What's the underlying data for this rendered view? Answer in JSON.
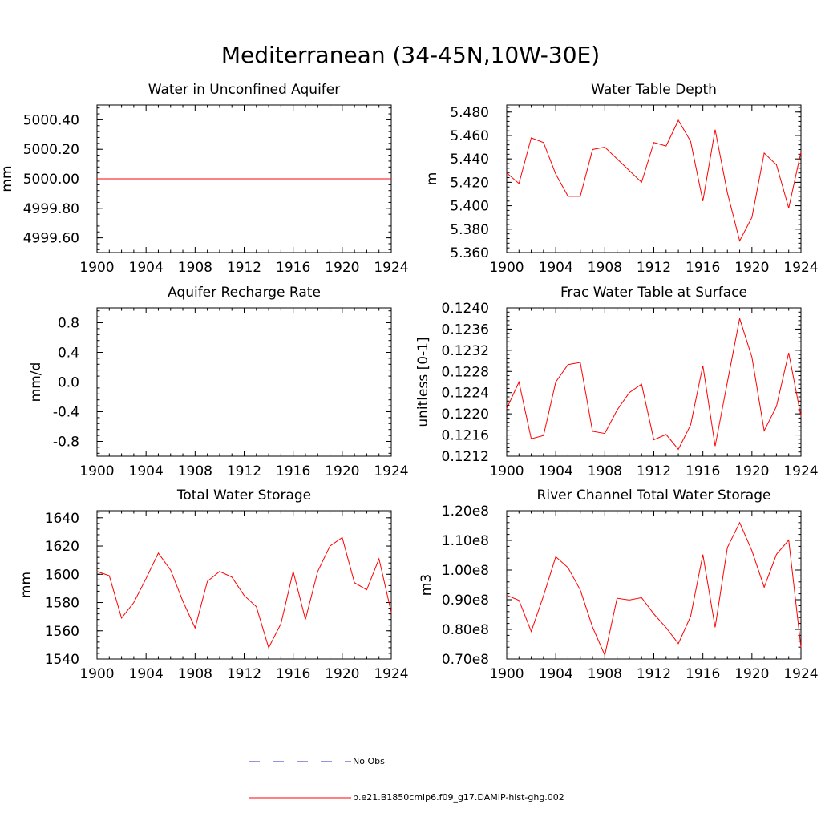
{
  "figure": {
    "title": "Mediterranean (34-45N,10W-30E)"
  },
  "legend": {
    "items": [
      {
        "label": "No Obs",
        "color": "#2b2bd0",
        "style": "dashed"
      },
      {
        "label": "b.e21.B1850cmip6.f09_g17.DAMIP-hist-ghg.002",
        "color": "#ff0000",
        "style": "solid"
      }
    ]
  },
  "chart_data": [
    {
      "type": "line",
      "title": "Water in Unconfined Aquifer",
      "ylabel": "mm",
      "xlim": [
        1900,
        1924
      ],
      "ylim": [
        4999.5,
        5000.5
      ],
      "yticks": [
        4999.6,
        4999.8,
        5000.0,
        5000.2,
        5000.4
      ],
      "ytick_labels": [
        "4999.60",
        "4999.80",
        "5000.00",
        "5000.20",
        "5000.40"
      ],
      "xticks": [
        1900,
        1904,
        1908,
        1912,
        1916,
        1920,
        1924
      ],
      "xtick_labels": [
        "1900",
        "1904",
        "1908",
        "1912",
        "1916",
        "1920",
        "1924"
      ],
      "grid": false,
      "series": [
        {
          "x": [
            1900,
            1901,
            1902,
            1903,
            1904,
            1905,
            1906,
            1907,
            1908,
            1909,
            1910,
            1911,
            1912,
            1913,
            1914,
            1915,
            1916,
            1917,
            1918,
            1919,
            1920,
            1921,
            1922,
            1923,
            1924
          ],
          "values": [
            5000.0,
            5000.0,
            5000.0,
            5000.0,
            5000.0,
            5000.0,
            5000.0,
            5000.0,
            5000.0,
            5000.0,
            5000.0,
            5000.0,
            5000.0,
            5000.0,
            5000.0,
            5000.0,
            5000.0,
            5000.0,
            5000.0,
            5000.0,
            5000.0,
            5000.0,
            5000.0,
            5000.0,
            5000.0
          ],
          "color": "#ff0000"
        }
      ]
    },
    {
      "type": "line",
      "title": "Water Table Depth",
      "ylabel": "m",
      "xlim": [
        1900,
        1924
      ],
      "ylim": [
        5.36,
        5.486
      ],
      "yticks": [
        5.36,
        5.38,
        5.4,
        5.42,
        5.44,
        5.46,
        5.48
      ],
      "ytick_labels": [
        "5.360",
        "5.380",
        "5.400",
        "5.420",
        "5.440",
        "5.460",
        "5.480"
      ],
      "xticks": [
        1900,
        1904,
        1908,
        1912,
        1916,
        1920,
        1924
      ],
      "xtick_labels": [
        "1900",
        "1904",
        "1908",
        "1912",
        "1916",
        "1920",
        "1924"
      ],
      "grid": false,
      "series": [
        {
          "x": [
            1900,
            1901,
            1902,
            1903,
            1904,
            1905,
            1906,
            1907,
            1908,
            1909,
            1910,
            1911,
            1912,
            1913,
            1914,
            1915,
            1916,
            1917,
            1918,
            1919,
            1920,
            1921,
            1922,
            1923,
            1924
          ],
          "values": [
            5.428,
            5.419,
            5.458,
            5.454,
            5.427,
            5.408,
            5.408,
            5.448,
            5.45,
            5.44,
            5.43,
            5.42,
            5.454,
            5.451,
            5.473,
            5.455,
            5.404,
            5.465,
            5.411,
            5.37,
            5.39,
            5.445,
            5.435,
            5.398,
            5.446
          ],
          "color": "#ff0000"
        }
      ]
    },
    {
      "type": "line",
      "title": "Aquifer Recharge Rate",
      "ylabel": "mm/d",
      "xlim": [
        1900,
        1924
      ],
      "ylim": [
        -1.0,
        1.0
      ],
      "yticks": [
        -0.8,
        -0.4,
        0.0,
        0.4,
        0.8
      ],
      "ytick_labels": [
        "-0.8",
        "-0.4",
        "0.0",
        "0.4",
        "0.8"
      ],
      "xticks": [
        1900,
        1904,
        1908,
        1912,
        1916,
        1920,
        1924
      ],
      "xtick_labels": [
        "1900",
        "1904",
        "1908",
        "1912",
        "1916",
        "1920",
        "1924"
      ],
      "grid": false,
      "series": [
        {
          "x": [
            1900,
            1901,
            1902,
            1903,
            1904,
            1905,
            1906,
            1907,
            1908,
            1909,
            1910,
            1911,
            1912,
            1913,
            1914,
            1915,
            1916,
            1917,
            1918,
            1919,
            1920,
            1921,
            1922,
            1923,
            1924
          ],
          "values": [
            0.0,
            0.0,
            0.0,
            0.0,
            0.0,
            0.0,
            0.0,
            0.0,
            0.0,
            0.0,
            0.0,
            0.0,
            0.0,
            0.0,
            0.0,
            0.0,
            0.0,
            0.0,
            0.0,
            0.0,
            0.0,
            0.0,
            0.0,
            0.0,
            0.0
          ],
          "color": "#ff0000"
        }
      ]
    },
    {
      "type": "line",
      "title": "Frac Water Table at Surface",
      "ylabel": "unitless [0-1]",
      "xlim": [
        1900,
        1924
      ],
      "ylim": [
        0.1212,
        0.124
      ],
      "yticks": [
        0.1212,
        0.1216,
        0.122,
        0.1224,
        0.1228,
        0.1232,
        0.1236,
        0.124
      ],
      "ytick_labels": [
        "0.1212",
        "0.1216",
        "0.1220",
        "0.1224",
        "0.1228",
        "0.1232",
        "0.1236",
        "0.1240"
      ],
      "xticks": [
        1900,
        1904,
        1908,
        1912,
        1916,
        1920,
        1924
      ],
      "xtick_labels": [
        "1900",
        "1904",
        "1908",
        "1912",
        "1916",
        "1920",
        "1924"
      ],
      "grid": false,
      "series": [
        {
          "x": [
            1900,
            1901,
            1902,
            1903,
            1904,
            1905,
            1906,
            1907,
            1908,
            1909,
            1910,
            1911,
            1912,
            1913,
            1914,
            1915,
            1916,
            1917,
            1918,
            1919,
            1920,
            1921,
            1922,
            1923,
            1924
          ],
          "values": [
            0.1221,
            0.1226,
            0.12153,
            0.12159,
            0.1226,
            0.12293,
            0.12297,
            0.12167,
            0.12163,
            0.12207,
            0.1224,
            0.12256,
            0.12151,
            0.12161,
            0.12133,
            0.12179,
            0.12291,
            0.12139,
            0.1226,
            0.1238,
            0.12307,
            0.12168,
            0.12214,
            0.12315,
            0.12195
          ],
          "color": "#ff0000"
        }
      ]
    },
    {
      "type": "line",
      "title": "Total Water Storage",
      "ylabel": "mm",
      "xlim": [
        1900,
        1924
      ],
      "ylim": [
        1540,
        1645
      ],
      "yticks": [
        1540,
        1560,
        1580,
        1600,
        1620,
        1640
      ],
      "ytick_labels": [
        "1540",
        "1560",
        "1580",
        "1600",
        "1620",
        "1640"
      ],
      "xticks": [
        1900,
        1904,
        1908,
        1912,
        1916,
        1920,
        1924
      ],
      "xtick_labels": [
        "1900",
        "1904",
        "1908",
        "1912",
        "1916",
        "1920",
        "1924"
      ],
      "grid": false,
      "series": [
        {
          "x": [
            1900,
            1901,
            1902,
            1903,
            1904,
            1905,
            1906,
            1907,
            1908,
            1909,
            1910,
            1911,
            1912,
            1913,
            1914,
            1915,
            1916,
            1917,
            1918,
            1919,
            1920,
            1921,
            1922,
            1923,
            1924
          ],
          "values": [
            1602,
            1599,
            1569,
            1580,
            1597,
            1615,
            1603,
            1581,
            1562,
            1595,
            1602,
            1598,
            1585,
            1577,
            1548,
            1565,
            1602,
            1568,
            1602,
            1620,
            1626,
            1594,
            1589,
            1611,
            1573
          ],
          "color": "#ff0000"
        }
      ]
    },
    {
      "type": "line",
      "title": "River Channel Total Water Storage",
      "ylabel": "m3",
      "xlim": [
        1900,
        1924
      ],
      "ylim": [
        70000000,
        120000000
      ],
      "yticks": [
        70000000,
        80000000,
        90000000,
        100000000,
        110000000,
        120000000
      ],
      "ytick_labels": [
        "0.70e8",
        "0.80e8",
        "0.90e8",
        "1.00e8",
        "1.10e8",
        "1.20e8"
      ],
      "xticks": [
        1900,
        1904,
        1908,
        1912,
        1916,
        1920,
        1924
      ],
      "xtick_labels": [
        "1900",
        "1904",
        "1908",
        "1912",
        "1916",
        "1920",
        "1924"
      ],
      "grid": false,
      "series": [
        {
          "x": [
            1900,
            1901,
            1902,
            1903,
            1904,
            1905,
            1906,
            1907,
            1908,
            1909,
            1910,
            1911,
            1912,
            1913,
            1914,
            1915,
            1916,
            1917,
            1918,
            1919,
            1920,
            1921,
            1922,
            1923,
            1924
          ],
          "values": [
            91500000,
            89800000,
            79300000,
            91300000,
            104500000,
            100800000,
            93300000,
            80800000,
            71300000,
            90500000,
            89900000,
            90700000,
            85200000,
            80600000,
            75200000,
            84400000,
            105200000,
            80700000,
            107600000,
            116000000,
            106500000,
            94200000,
            105300000,
            110100000,
            73900000
          ],
          "color": "#ff0000"
        }
      ]
    }
  ]
}
